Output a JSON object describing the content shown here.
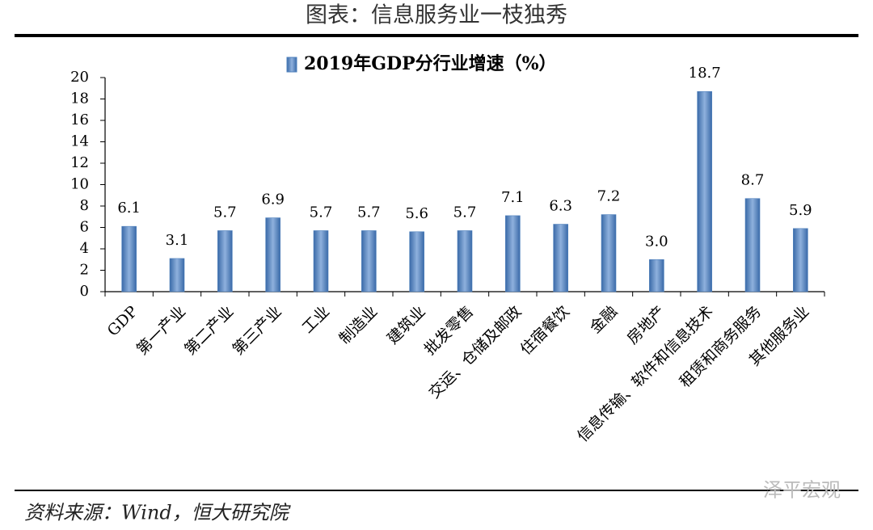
{
  "header": {
    "title": "图表：信息服务业一枝独秀"
  },
  "footer": {
    "source": "资料来源：Wind，恒大研究院",
    "watermark": "泽平宏观"
  },
  "chart_data": {
    "type": "bar",
    "categories": [
      "GDP",
      "第一产业",
      "第二产业",
      "第三产业",
      "工业",
      "制造业",
      "建筑业",
      "批发零售",
      "交运、仓储及邮政",
      "住宿餐饮",
      "金融",
      "房地产",
      "信息传输、软件和信息技术",
      "租赁和商务服务",
      "其他服务业"
    ],
    "series": [
      {
        "name": "2019年GDP分行业增速（%）",
        "color": "#4f81bd",
        "values": [
          6.1,
          3.1,
          5.7,
          6.9,
          5.7,
          5.7,
          5.6,
          5.7,
          7.1,
          6.3,
          7.2,
          3.0,
          18.7,
          8.7,
          5.9
        ],
        "value_labels": [
          "6.1",
          "3.1",
          "5.7",
          "6.9",
          "5.7",
          "5.7",
          "5.6",
          "5.7",
          "7.1",
          "6.3",
          "7.2",
          "3.0",
          "18.7",
          "8.7",
          "5.9"
        ]
      }
    ],
    "ylim": [
      0,
      20
    ],
    "yticks": [
      0,
      2,
      4,
      6,
      8,
      10,
      12,
      14,
      16,
      18,
      20
    ],
    "legend": "top"
  }
}
